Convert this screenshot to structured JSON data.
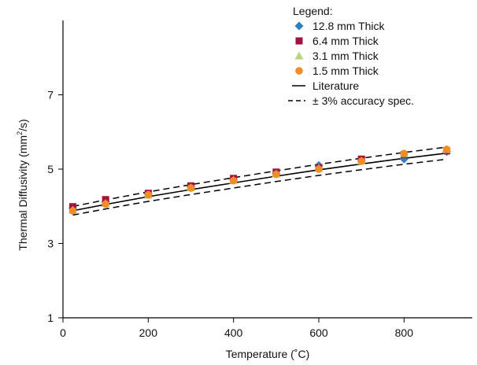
{
  "chart_data": {
    "type": "scatter",
    "title": "",
    "xlabel": "Temperature (˚C)",
    "ylabel_main": "Thermal Diffusivity (mm",
    "ylabel_sup": "2",
    "ylabel_tail": "/s)",
    "xlim": [
      0,
      960
    ],
    "ylim": [
      1,
      9
    ],
    "x_ticks": [
      0,
      200,
      400,
      600,
      800
    ],
    "y_ticks": [
      1,
      3,
      5,
      7
    ],
    "x_tick_labels": [
      "0",
      "200",
      "400",
      "600",
      "800"
    ],
    "y_tick_labels": [
      "1",
      "3",
      "5",
      "7"
    ],
    "grid": false,
    "legend": {
      "title": "Legend:",
      "placement": "top-right",
      "entries": [
        {
          "label": "12.8 mm Thick",
          "marker": "diamond",
          "color": "#2f7fc2"
        },
        {
          "label": "6.4 mm Thick",
          "marker": "square",
          "color": "#a3123a"
        },
        {
          "label": "3.1 mm Thick",
          "marker": "triangle",
          "color": "#b9d37e"
        },
        {
          "label": "1.5 mm Thick",
          "marker": "circle",
          "color": "#f28c28"
        },
        {
          "label": "Literature",
          "marker": "solid-line",
          "color": "#000000"
        },
        {
          "label": "± 3% accuracy spec.",
          "marker": "dashed-line",
          "color": "#000000"
        }
      ]
    },
    "series": [
      {
        "name": "12.8 mm Thick",
        "marker": "diamond",
        "color": "#2f7fc2",
        "x": [
          23,
          100,
          200,
          300,
          400,
          500,
          600,
          700,
          800,
          900
        ],
        "y": [
          3.95,
          4.12,
          4.33,
          4.53,
          4.71,
          4.88,
          5.1,
          5.23,
          5.27,
          5.47
        ]
      },
      {
        "name": "6.4 mm Thick",
        "marker": "square",
        "color": "#a3123a",
        "x": [
          23,
          100,
          200,
          300,
          400,
          500,
          600,
          700,
          800,
          900
        ],
        "y": [
          3.99,
          4.18,
          4.35,
          4.55,
          4.75,
          4.92,
          5.04,
          5.27,
          5.39,
          5.49
        ]
      },
      {
        "name": "3.1 mm Thick",
        "marker": "triangle",
        "color": "#b9d37e",
        "x": [
          23,
          100,
          200,
          300,
          400,
          500,
          600,
          700,
          800,
          900
        ],
        "y": [
          3.9,
          4.08,
          4.3,
          4.5,
          4.7,
          4.87,
          5.02,
          5.22,
          5.42,
          5.53
        ]
      },
      {
        "name": "1.5 mm Thick",
        "marker": "circle",
        "color": "#f28c28",
        "x": [
          23,
          100,
          200,
          300,
          400,
          500,
          600,
          700,
          800,
          900
        ],
        "y": [
          3.88,
          4.06,
          4.31,
          4.49,
          4.69,
          4.86,
          5.0,
          5.21,
          5.42,
          5.53
        ]
      }
    ],
    "literature": {
      "name": "Literature",
      "x": [
        23,
        100,
        200,
        300,
        400,
        500,
        600,
        700,
        800,
        900
      ],
      "y": [
        3.88,
        4.05,
        4.26,
        4.45,
        4.63,
        4.81,
        4.98,
        5.14,
        5.29,
        5.43
      ]
    },
    "accuracy_spec_percent": 3
  }
}
